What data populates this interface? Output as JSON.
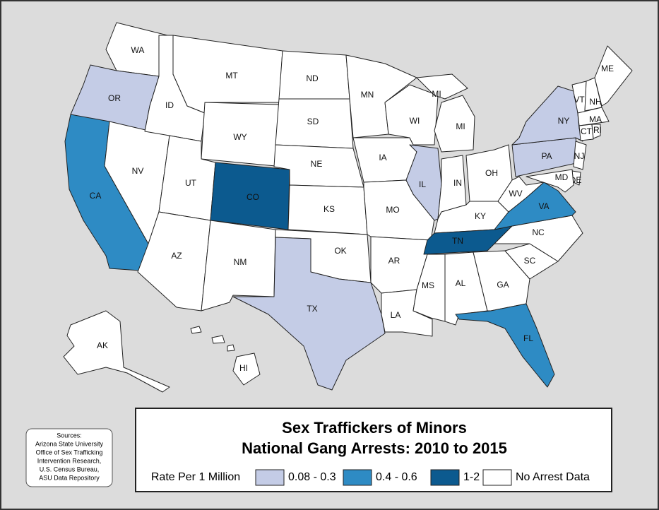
{
  "title": [
    "Sex Traffickers of Minors",
    "National Gang Arrests: 2010 to 2015"
  ],
  "legend": {
    "title": "Rate Per 1 Million",
    "items": [
      {
        "label": "0.08 - 0.3",
        "color": "#c4cce6"
      },
      {
        "label": "0.4 - 0.6",
        "color": "#2e8bc4"
      },
      {
        "label": "1-2",
        "color": "#0c5a8f"
      },
      {
        "label": "No Arrest Data",
        "color": "#ffffff"
      }
    ]
  },
  "sources": [
    "Sources:",
    "Arizona State University",
    "Office of Sex Trafficking",
    "Intervention Research,",
    "U.S. Census Bureau,",
    "ASU Data Repository"
  ],
  "states": [
    {
      "label": "WA",
      "class": 3
    },
    {
      "label": "OR",
      "class": 0
    },
    {
      "label": "CA",
      "class": 1
    },
    {
      "label": "NV",
      "class": 3
    },
    {
      "label": "ID",
      "class": 3
    },
    {
      "label": "MT",
      "class": 3
    },
    {
      "label": "WY",
      "class": 3
    },
    {
      "label": "UT",
      "class": 3
    },
    {
      "label": "CO",
      "class": 2
    },
    {
      "label": "AZ",
      "class": 3
    },
    {
      "label": "NM",
      "class": 3
    },
    {
      "label": "ND",
      "class": 3
    },
    {
      "label": "SD",
      "class": 3
    },
    {
      "label": "NE",
      "class": 3
    },
    {
      "label": "KS",
      "class": 3
    },
    {
      "label": "OK",
      "class": 3
    },
    {
      "label": "TX",
      "class": 0
    },
    {
      "label": "MN",
      "class": 3
    },
    {
      "label": "IA",
      "class": 3
    },
    {
      "label": "MO",
      "class": 3
    },
    {
      "label": "AR",
      "class": 3
    },
    {
      "label": "LA",
      "class": 3
    },
    {
      "label": "WI",
      "class": 3
    },
    {
      "label": "IL",
      "class": 0
    },
    {
      "label": "IN",
      "class": 3
    },
    {
      "label": "MI",
      "class": 3
    },
    {
      "label": "MI",
      "class": 3
    },
    {
      "label": "OH",
      "class": 3
    },
    {
      "label": "KY",
      "class": 3
    },
    {
      "label": "TN",
      "class": 2
    },
    {
      "label": "MS",
      "class": 3
    },
    {
      "label": "AL",
      "class": 3
    },
    {
      "label": "GA",
      "class": 3
    },
    {
      "label": "FL",
      "class": 1
    },
    {
      "label": "SC",
      "class": 3
    },
    {
      "label": "NC",
      "class": 3
    },
    {
      "label": "VA",
      "class": 1
    },
    {
      "label": "WV",
      "class": 3
    },
    {
      "label": "PA",
      "class": 0
    },
    {
      "label": "NY",
      "class": 0
    },
    {
      "label": "VT",
      "class": 3
    },
    {
      "label": "NH",
      "class": 3
    },
    {
      "label": "ME",
      "class": 3
    },
    {
      "label": "MA",
      "class": 3
    },
    {
      "label": "CT",
      "class": 3
    },
    {
      "label": "RI",
      "class": 3
    },
    {
      "label": "NJ",
      "class": 3
    },
    {
      "label": "DE",
      "class": 3
    },
    {
      "label": "MD",
      "class": 3
    },
    {
      "label": "AK",
      "class": 3
    },
    {
      "label": "HI",
      "class": 3
    }
  ]
}
